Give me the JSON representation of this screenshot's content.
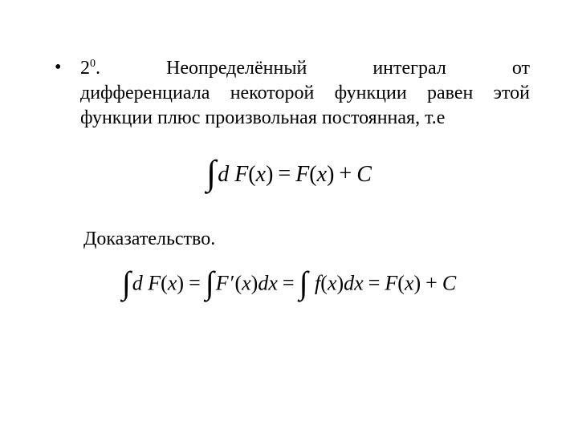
{
  "colors": {
    "background": "#ffffff",
    "text": "#000000"
  },
  "bullet": {
    "marker": "•",
    "number_base": "2",
    "number_exp": "0",
    "number_dot": ".",
    "line1_words": [
      "Неопределённый",
      "интеграл",
      "от"
    ],
    "rest": "дифференциала некоторой функции равен этой функции плюс произвольная постоянная, т.е"
  },
  "formula1": {
    "html": "<span class=\"int\">∫</span><span>d</span> <span>F</span><span class=\"up\">(</span><span>x</span><span class=\"up\">)</span><span class=\"op\">=</span><span>F</span><span class=\"up\">(</span><span>x</span><span class=\"up\">)</span><span class=\"op\">+</span><span>C</span>",
    "fontsize": 28,
    "style_note": "italic Times, integral sign large upright"
  },
  "proof_label": "Доказательство.",
  "formula2": {
    "html": "<span class=\"int\">∫</span><span>d</span> <span>F</span><span class=\"up\">(</span><span>x</span><span class=\"up\">)</span><span class=\"op\">=</span><span class=\"int\">∫</span><span>F</span><span class=\"prime\">&#8202;′</span><span class=\"up\">(</span><span>x</span><span class=\"up\">)</span><span>dx</span><span class=\"op\">=</span><span class=\"int\">∫</span> <span>f</span><span class=\"up\">(</span><span>x</span><span class=\"up\">)</span><span>dx</span><span class=\"op\">=</span><span>F</span><span class=\"up\">(</span><span>x</span><span class=\"up\">)</span><span class=\"op\">+</span><span>C</span>",
    "fontsize": 26
  }
}
